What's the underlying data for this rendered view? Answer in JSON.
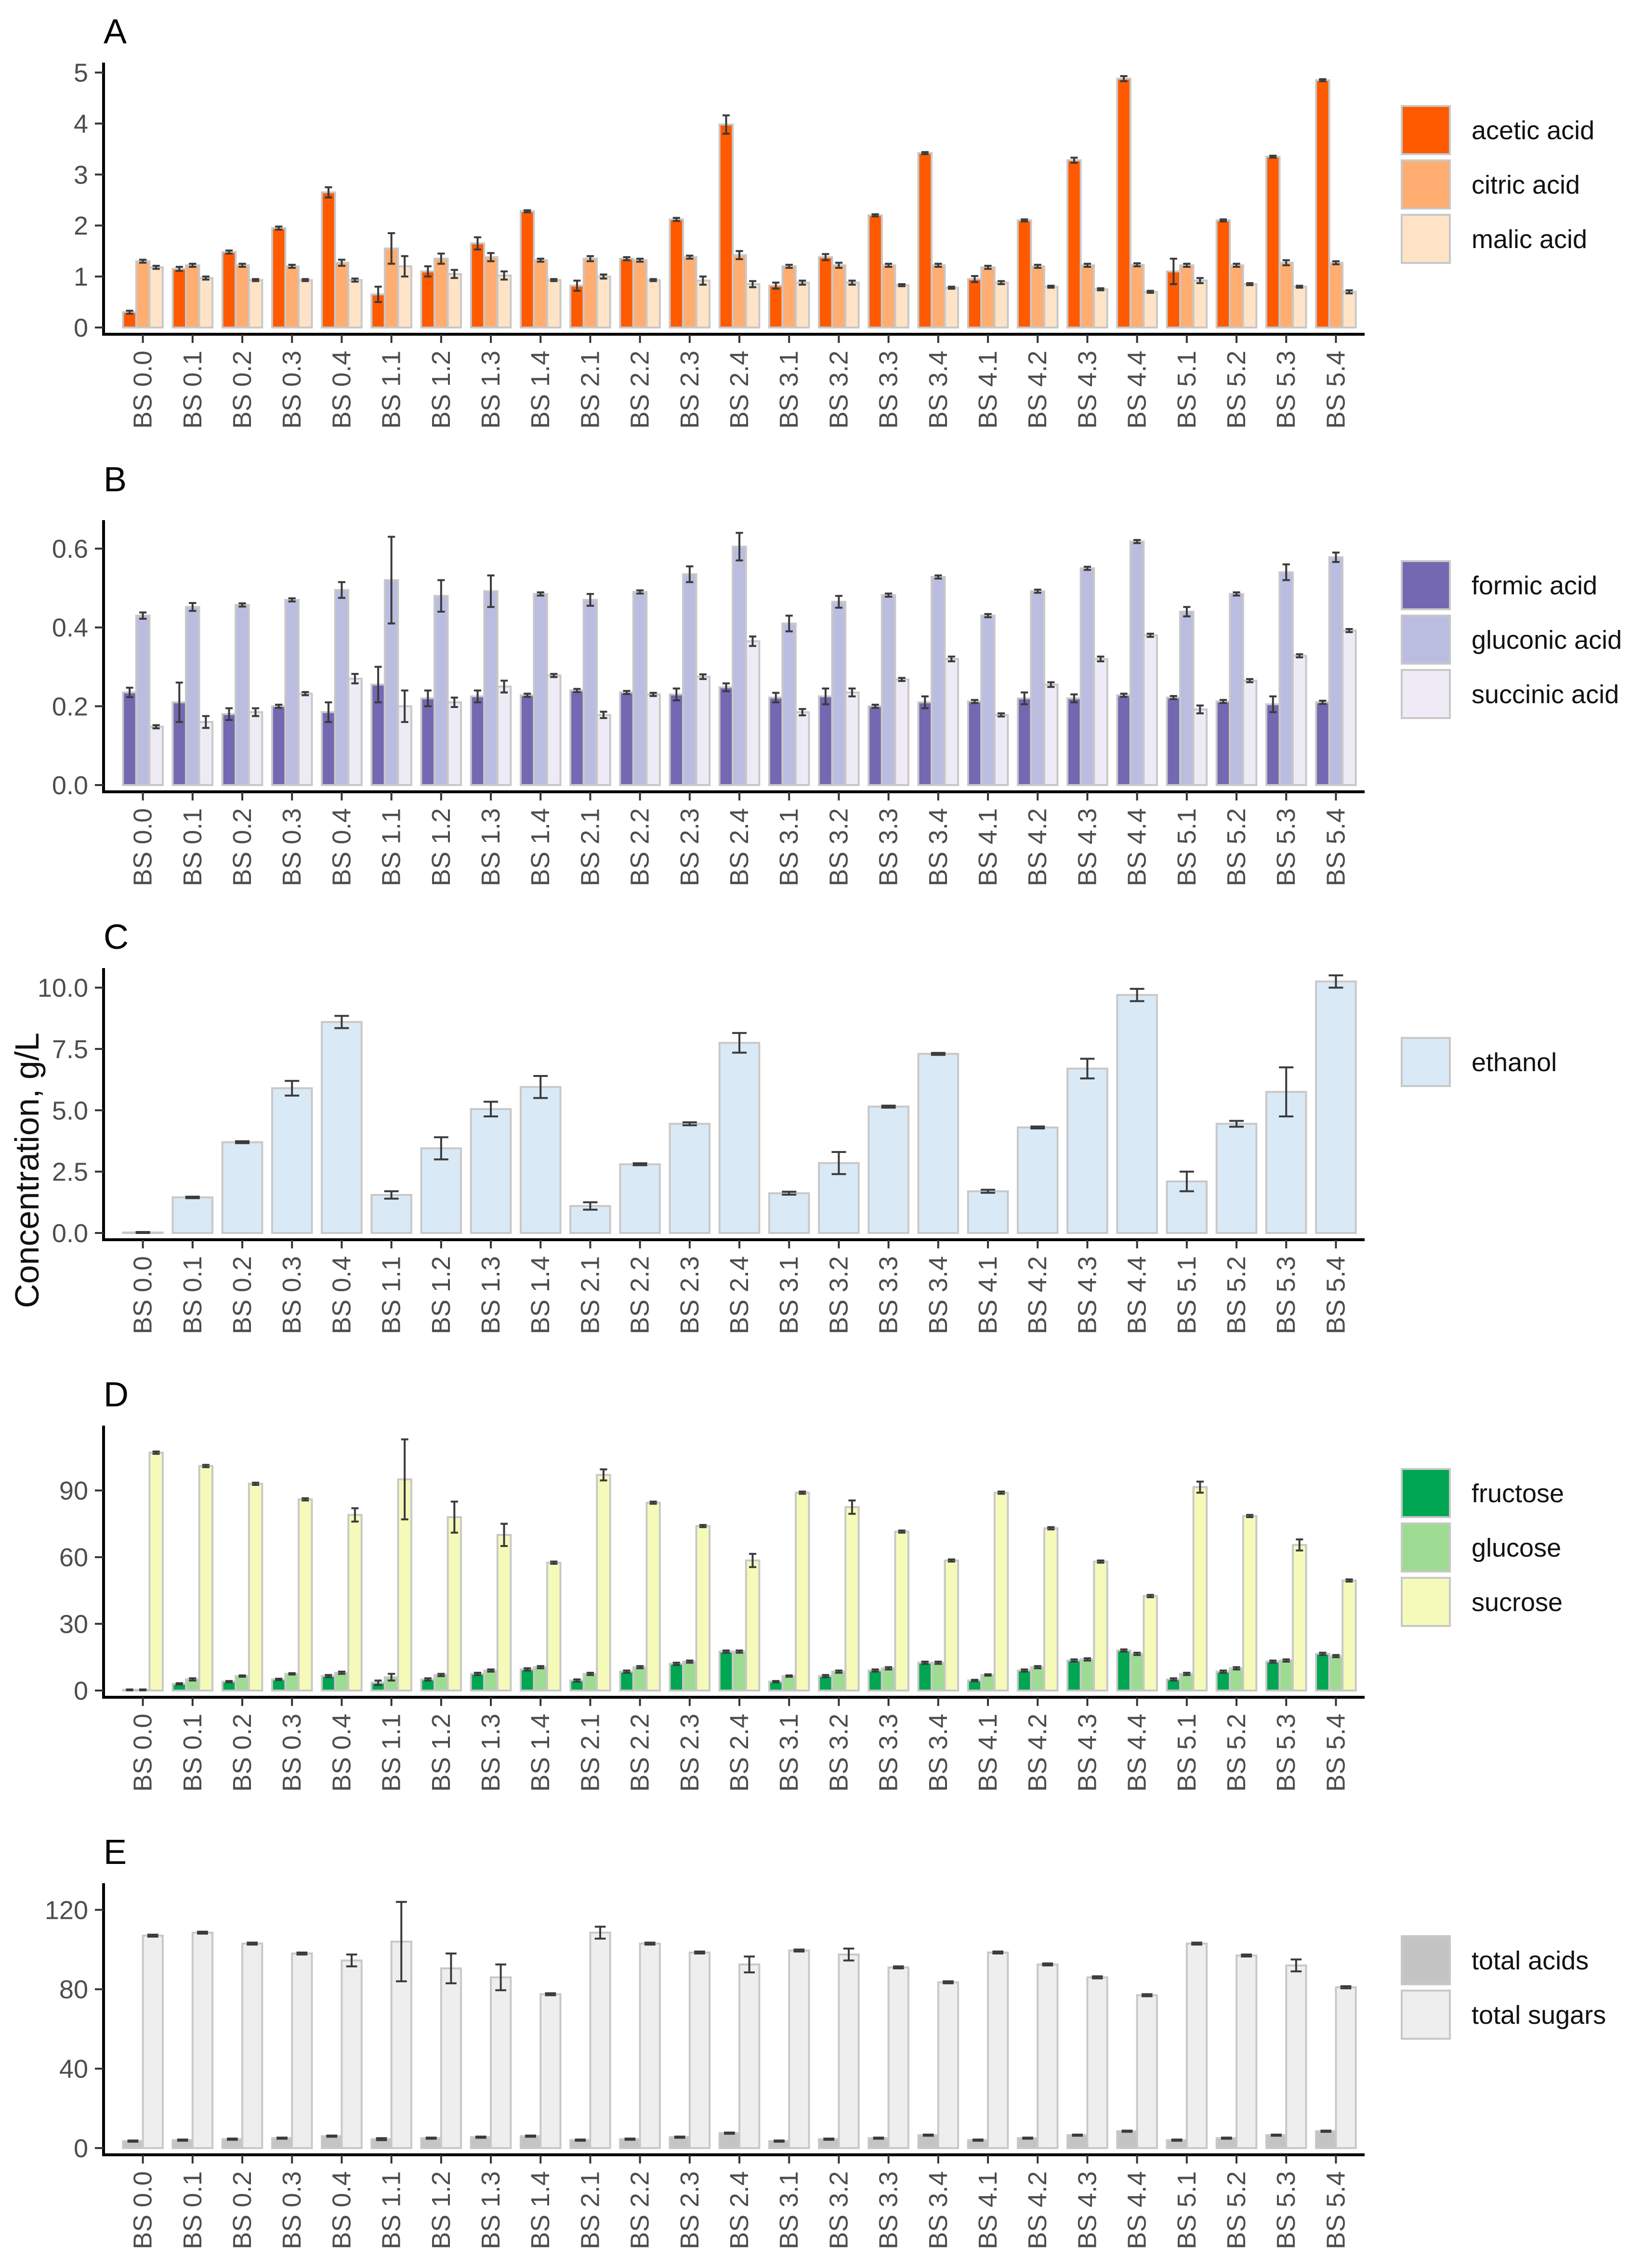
{
  "figure": {
    "ylabel": "Concentration, g/L"
  },
  "chart_data": [
    {
      "panel": "A",
      "type": "bar",
      "categories": [
        "BS 0.0",
        "BS 0.1",
        "BS 0.2",
        "BS 0.3",
        "BS 0.4",
        "BS 1.1",
        "BS 1.2",
        "BS 1.3",
        "BS 1.4",
        "BS 2.1",
        "BS 2.2",
        "BS 2.3",
        "BS 2.4",
        "BS 3.1",
        "BS 3.2",
        "BS 3.3",
        "BS 3.4",
        "BS 4.1",
        "BS 4.2",
        "BS 4.3",
        "BS 4.4",
        "BS 5.1",
        "BS 5.2",
        "BS 5.3",
        "BS 5.4"
      ],
      "ylim": [
        0,
        5.1
      ],
      "yticks": [
        0,
        1,
        2,
        3,
        4,
        5
      ],
      "ytick_labels": [
        "0",
        "1",
        "2",
        "3",
        "4",
        "5"
      ],
      "series": [
        {
          "name": "acetic acid",
          "color": "#FF5A00",
          "values": [
            0.3,
            1.15,
            1.48,
            1.95,
            2.65,
            0.65,
            1.1,
            1.65,
            2.28,
            0.82,
            1.35,
            2.12,
            3.98,
            0.82,
            1.38,
            2.2,
            3.42,
            0.95,
            2.1,
            3.28,
            4.88,
            1.1,
            2.1,
            3.35,
            4.85
          ],
          "errors": [
            0.03,
            0.04,
            0.03,
            0.03,
            0.1,
            0.15,
            0.1,
            0.12,
            0.02,
            0.1,
            0.03,
            0.03,
            0.18,
            0.06,
            0.06,
            0.02,
            0.02,
            0.06,
            0.02,
            0.05,
            0.05,
            0.25,
            0.02,
            0.02,
            0.02
          ]
        },
        {
          "name": "citric acid",
          "color": "#FFAD70",
          "values": [
            1.3,
            1.22,
            1.22,
            1.2,
            1.27,
            1.55,
            1.35,
            1.38,
            1.32,
            1.35,
            1.32,
            1.38,
            1.42,
            1.2,
            1.22,
            1.22,
            1.22,
            1.18,
            1.2,
            1.22,
            1.23,
            1.22,
            1.22,
            1.27,
            1.27
          ],
          "errors": [
            0.03,
            0.03,
            0.03,
            0.03,
            0.06,
            0.3,
            0.1,
            0.08,
            0.03,
            0.05,
            0.03,
            0.03,
            0.08,
            0.03,
            0.05,
            0.03,
            0.03,
            0.03,
            0.03,
            0.03,
            0.03,
            0.03,
            0.03,
            0.05,
            0.03
          ]
        },
        {
          "name": "malic acid",
          "color": "#FFE3C7",
          "values": [
            1.18,
            0.97,
            0.93,
            0.93,
            0.93,
            1.2,
            1.05,
            1.02,
            0.93,
            1.0,
            0.93,
            0.92,
            0.85,
            0.88,
            0.88,
            0.83,
            0.78,
            0.88,
            0.8,
            0.75,
            0.7,
            0.92,
            0.85,
            0.8,
            0.7
          ],
          "errors": [
            0.03,
            0.03,
            0.02,
            0.02,
            0.03,
            0.2,
            0.08,
            0.08,
            0.02,
            0.04,
            0.02,
            0.08,
            0.06,
            0.04,
            0.04,
            0.02,
            0.02,
            0.03,
            0.02,
            0.02,
            0.02,
            0.05,
            0.02,
            0.02,
            0.03
          ]
        }
      ]
    },
    {
      "panel": "B",
      "type": "bar",
      "categories": [
        "BS 0.0",
        "BS 0.1",
        "BS 0.2",
        "BS 0.3",
        "BS 0.4",
        "BS 1.1",
        "BS 1.2",
        "BS 1.3",
        "BS 1.4",
        "BS 2.1",
        "BS 2.2",
        "BS 2.3",
        "BS 2.4",
        "BS 3.1",
        "BS 3.2",
        "BS 3.3",
        "BS 3.4",
        "BS 4.1",
        "BS 4.2",
        "BS 4.3",
        "BS 4.4",
        "BS 5.1",
        "BS 5.2",
        "BS 5.3",
        "BS 5.4"
      ],
      "ylim": [
        0,
        0.66
      ],
      "yticks": [
        0,
        0.2,
        0.4,
        0.6
      ],
      "ytick_labels": [
        "0.0",
        "0.2",
        "0.4",
        "0.6"
      ],
      "series": [
        {
          "name": "formic acid",
          "color": "#7468B2",
          "values": [
            0.235,
            0.21,
            0.18,
            0.2,
            0.185,
            0.255,
            0.22,
            0.225,
            0.228,
            0.24,
            0.235,
            0.23,
            0.248,
            0.222,
            0.225,
            0.2,
            0.21,
            0.212,
            0.22,
            0.22,
            0.228,
            0.222,
            0.212,
            0.205,
            0.21
          ],
          "errors": [
            0.012,
            0.05,
            0.015,
            0.004,
            0.025,
            0.045,
            0.02,
            0.015,
            0.004,
            0.004,
            0.004,
            0.015,
            0.01,
            0.012,
            0.02,
            0.004,
            0.015,
            0.004,
            0.015,
            0.01,
            0.004,
            0.004,
            0.004,
            0.02,
            0.004
          ]
        },
        {
          "name": "gluconic acid",
          "color": "#BBBDE0",
          "values": [
            0.43,
            0.452,
            0.457,
            0.47,
            0.495,
            0.52,
            0.48,
            0.492,
            0.485,
            0.47,
            0.49,
            0.535,
            0.605,
            0.41,
            0.465,
            0.482,
            0.528,
            0.43,
            0.492,
            0.55,
            0.618,
            0.44,
            0.485,
            0.54,
            0.578
          ],
          "errors": [
            0.008,
            0.01,
            0.004,
            0.004,
            0.02,
            0.11,
            0.04,
            0.04,
            0.004,
            0.015,
            0.004,
            0.02,
            0.035,
            0.02,
            0.015,
            0.004,
            0.004,
            0.004,
            0.004,
            0.004,
            0.004,
            0.012,
            0.004,
            0.02,
            0.012
          ]
        },
        {
          "name": "succinic acid",
          "color": "#EEEBF6",
          "values": [
            0.148,
            0.16,
            0.185,
            0.232,
            0.27,
            0.2,
            0.21,
            0.25,
            0.278,
            0.178,
            0.23,
            0.275,
            0.365,
            0.185,
            0.235,
            0.268,
            0.32,
            0.178,
            0.255,
            0.32,
            0.38,
            0.192,
            0.265,
            0.328,
            0.392
          ],
          "errors": [
            0.004,
            0.015,
            0.01,
            0.004,
            0.012,
            0.04,
            0.012,
            0.015,
            0.004,
            0.008,
            0.004,
            0.006,
            0.012,
            0.008,
            0.01,
            0.004,
            0.006,
            0.004,
            0.006,
            0.006,
            0.004,
            0.01,
            0.004,
            0.004,
            0.004
          ]
        }
      ]
    },
    {
      "panel": "C",
      "type": "bar",
      "categories": [
        "BS 0.0",
        "BS 0.1",
        "BS 0.2",
        "BS 0.3",
        "BS 0.4",
        "BS 1.1",
        "BS 1.2",
        "BS 1.3",
        "BS 1.4",
        "BS 2.1",
        "BS 2.2",
        "BS 2.3",
        "BS 2.4",
        "BS 3.1",
        "BS 3.2",
        "BS 3.3",
        "BS 3.4",
        "BS 4.1",
        "BS 4.2",
        "BS 4.3",
        "BS 4.4",
        "BS 5.1",
        "BS 5.2",
        "BS 5.3",
        "BS 5.4"
      ],
      "ylim": [
        0,
        10.6
      ],
      "yticks": [
        0,
        2.5,
        5,
        7.5,
        10
      ],
      "ytick_labels": [
        "0.0",
        "2.5",
        "5.0",
        "7.5",
        "10.0"
      ],
      "series": [
        {
          "name": "ethanol",
          "color": "#DAE9F6",
          "values": [
            0.02,
            1.45,
            3.7,
            5.9,
            8.6,
            1.55,
            3.45,
            5.05,
            5.95,
            1.1,
            2.8,
            4.45,
            7.75,
            1.62,
            2.85,
            5.15,
            7.3,
            1.7,
            4.3,
            6.7,
            9.7,
            2.1,
            4.45,
            5.75,
            10.25
          ],
          "errors": [
            0.02,
            0.03,
            0.04,
            0.3,
            0.25,
            0.15,
            0.45,
            0.3,
            0.45,
            0.15,
            0.04,
            0.06,
            0.4,
            0.06,
            0.45,
            0.04,
            0.04,
            0.06,
            0.04,
            0.4,
            0.25,
            0.4,
            0.12,
            1.0,
            0.25
          ]
        }
      ]
    },
    {
      "panel": "D",
      "type": "bar",
      "categories": [
        "BS 0.0",
        "BS 0.1",
        "BS 0.2",
        "BS 0.3",
        "BS 0.4",
        "BS 1.1",
        "BS 1.2",
        "BS 1.3",
        "BS 1.4",
        "BS 2.1",
        "BS 2.2",
        "BS 2.3",
        "BS 2.4",
        "BS 3.1",
        "BS 3.2",
        "BS 3.3",
        "BS 3.4",
        "BS 4.1",
        "BS 4.2",
        "BS 4.3",
        "BS 4.4",
        "BS 5.1",
        "BS 5.2",
        "BS 5.3",
        "BS 5.4"
      ],
      "ylim": [
        0,
        117
      ],
      "yticks": [
        0,
        30,
        60,
        90
      ],
      "ytick_labels": [
        "0",
        "30",
        "60",
        "90"
      ],
      "series": [
        {
          "name": "fructose",
          "color": "#00A651",
          "values": [
            0.3,
            3,
            4,
            5,
            6.5,
            3.5,
            5,
            7.5,
            9.5,
            4.5,
            8.5,
            12,
            17.5,
            4,
            6.5,
            9,
            12.5,
            4.5,
            9,
            13.5,
            18,
            5,
            8.5,
            13,
            16.5
          ],
          "errors": [
            0.2,
            0.3,
            0.3,
            0.3,
            0.5,
            1,
            0.5,
            0.5,
            0.5,
            0.5,
            0.5,
            0.5,
            0.5,
            0.3,
            0.5,
            0.5,
            0.5,
            0.3,
            0.5,
            0.5,
            0.5,
            0.5,
            0.5,
            0.5,
            0.5
          ]
        },
        {
          "name": "glucose",
          "color": "#9EDB92",
          "values": [
            0.3,
            5,
            6.5,
            7.5,
            8,
            6,
            7,
            9,
            10.5,
            7.5,
            10.5,
            13,
            17.5,
            6.5,
            8.5,
            10,
            12.5,
            7,
            10.5,
            14,
            16.5,
            7.5,
            10,
            13.5,
            15.5
          ],
          "errors": [
            0.2,
            0.5,
            0.3,
            0.3,
            0.5,
            1.5,
            0.5,
            0.5,
            0.5,
            0.5,
            0.5,
            0.5,
            0.5,
            0.3,
            0.5,
            0.5,
            0.5,
            0.3,
            0.5,
            0.5,
            0.5,
            0.5,
            0.5,
            0.5,
            0.5
          ]
        },
        {
          "name": "sucrose",
          "color": "#F5FAB9",
          "values": [
            107,
            101,
            93,
            86,
            79,
            95,
            78,
            70,
            57.5,
            97,
            84.5,
            74,
            58.5,
            89,
            82.5,
            71.5,
            58.5,
            89,
            73,
            58,
            42.5,
            91.5,
            78.5,
            65.5,
            49.5
          ],
          "errors": [
            0.5,
            0.5,
            0.5,
            0.5,
            3,
            18,
            7,
            5,
            0.5,
            2.5,
            0.5,
            0.5,
            3,
            0.5,
            3,
            0.5,
            0.5,
            0.5,
            0.5,
            0.5,
            0.5,
            2.5,
            0.5,
            2.5,
            0.5
          ]
        }
      ]
    },
    {
      "panel": "E",
      "type": "bar",
      "categories": [
        "BS 0.0",
        "BS 0.1",
        "BS 0.2",
        "BS 0.3",
        "BS 0.4",
        "BS 1.1",
        "BS 1.2",
        "BS 1.3",
        "BS 1.4",
        "BS 2.1",
        "BS 2.2",
        "BS 2.3",
        "BS 2.4",
        "BS 3.1",
        "BS 3.2",
        "BS 3.3",
        "BS 3.4",
        "BS 4.1",
        "BS 4.2",
        "BS 4.3",
        "BS 4.4",
        "BS 5.1",
        "BS 5.2",
        "BS 5.3",
        "BS 5.4"
      ],
      "ylim": [
        0,
        131
      ],
      "yticks": [
        0,
        40,
        80,
        120
      ],
      "ytick_labels": [
        "0",
        "40",
        "80",
        "120"
      ],
      "series": [
        {
          "name": "total acids",
          "color": "#C4C4C4",
          "values": [
            3.5,
            4,
            4.5,
            5,
            6,
            4.5,
            5,
            5.5,
            6,
            4,
            4.5,
            5.5,
            7.5,
            3.5,
            4.5,
            5,
            6.5,
            4,
            5,
            6.5,
            8.5,
            4,
            5,
            6.5,
            8.5
          ],
          "errors": [
            0.3,
            0.3,
            0.3,
            0.3,
            0.3,
            0.5,
            0.3,
            0.3,
            0.3,
            0.3,
            0.3,
            0.3,
            0.3,
            0.3,
            0.3,
            0.3,
            0.3,
            0.3,
            0.3,
            0.3,
            0.3,
            0.3,
            0.3,
            0.3,
            0.3
          ]
        },
        {
          "name": "total sugars",
          "color": "#EEEEEE",
          "values": [
            107,
            108.5,
            103,
            98,
            94.5,
            104,
            90.5,
            86,
            77.5,
            108.5,
            103,
            98.5,
            92.5,
            99.5,
            97.5,
            91,
            83.5,
            98.5,
            92.5,
            86,
            77,
            103,
            97,
            92,
            81
          ],
          "errors": [
            0.5,
            0.5,
            0.5,
            0.5,
            3,
            20,
            7.5,
            6.5,
            0.5,
            3,
            0.5,
            0.5,
            4,
            0.5,
            3,
            0.5,
            0.5,
            0.5,
            0.5,
            0.5,
            0.5,
            0.5,
            0.5,
            3,
            0.5
          ]
        }
      ]
    }
  ]
}
